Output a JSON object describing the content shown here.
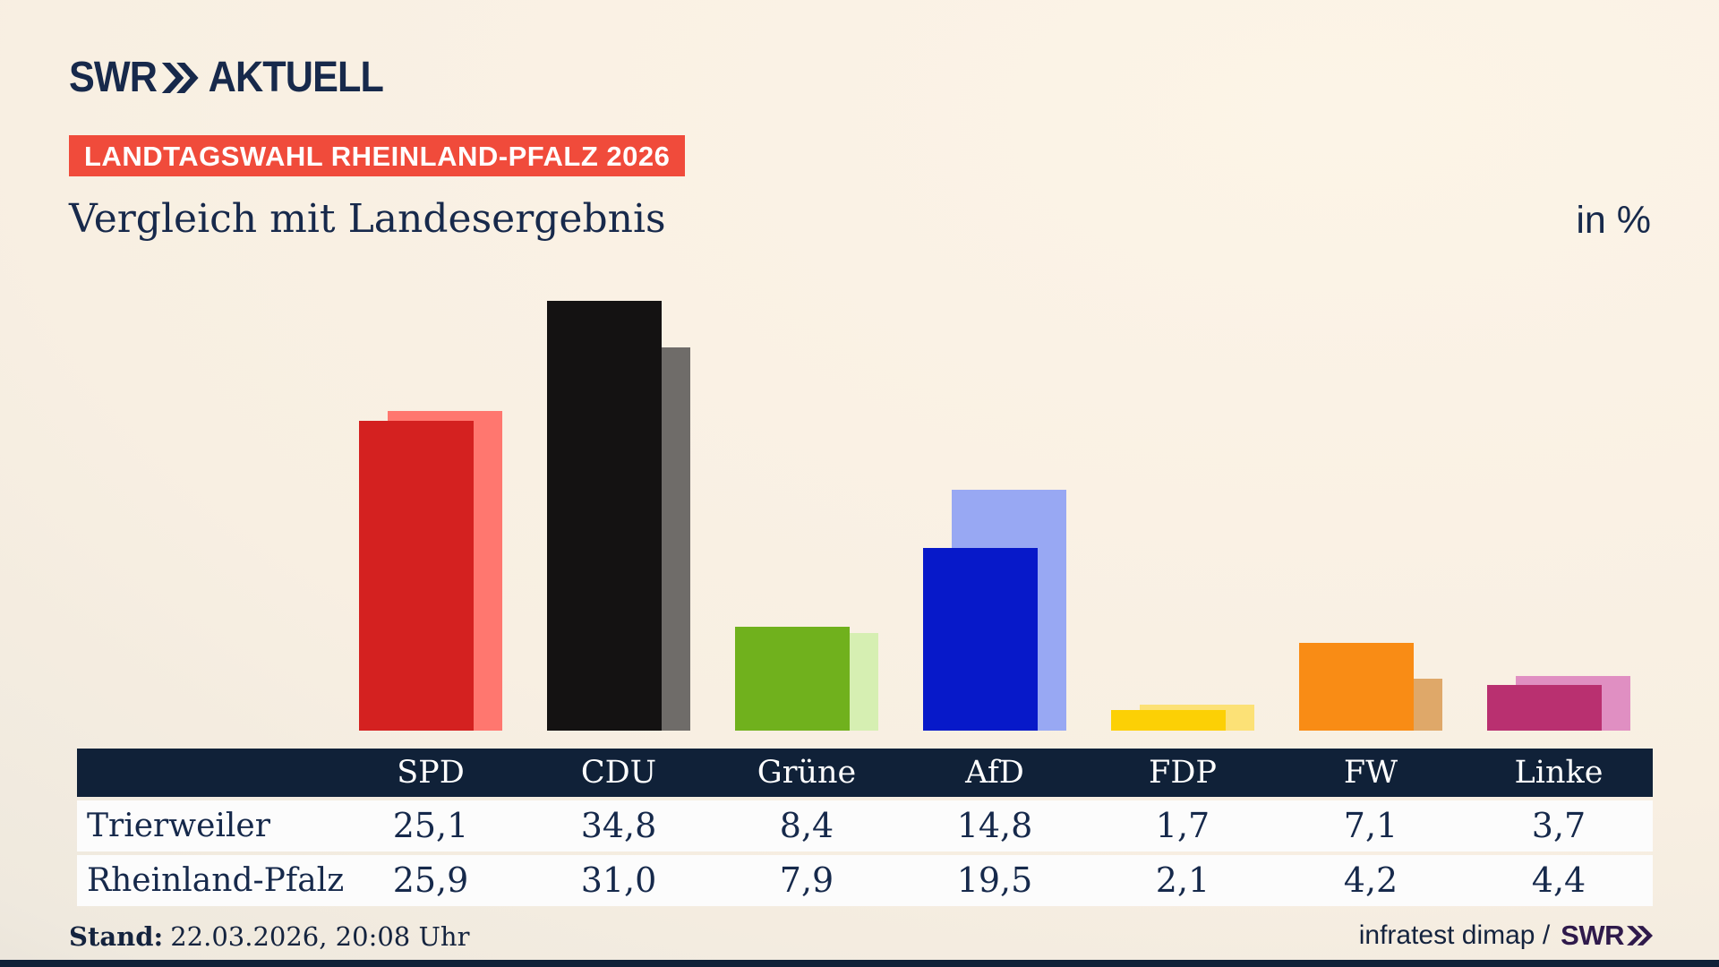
{
  "header": {
    "logo_brand": "SWR",
    "logo_name": "AKTUELL",
    "banner": "LANDTAGSWAHL RHEINLAND-PFALZ 2026",
    "title": "Vergleich mit Landesergebnis",
    "unit": "in %"
  },
  "chart_data": {
    "type": "bar",
    "categories": [
      "SPD",
      "CDU",
      "Grüne",
      "AfD",
      "FDP",
      "FW",
      "Linke"
    ],
    "series": [
      {
        "name": "Trierweiler",
        "values": [
          25.1,
          34.8,
          8.4,
          14.8,
          1.7,
          7.1,
          3.7
        ]
      },
      {
        "name": "Rheinland-Pfalz",
        "values": [
          25.9,
          31.0,
          7.9,
          19.5,
          2.1,
          4.2,
          4.4
        ]
      }
    ],
    "unit": "%",
    "value_format": "comma-decimal",
    "ylim": [
      0,
      36
    ],
    "grid": false,
    "legend_position": "table-row-labels",
    "bar_colors_trierweiler": [
      "#d42120",
      "#141212",
      "#70b11d",
      "#0719c9",
      "#fcd005",
      "#f98c15",
      "#b93070"
    ],
    "bar_colors_rheinland_pfalz": [
      "#ff776f",
      "#6f6c69",
      "#d6efb2",
      "#98a8f3",
      "#fce176",
      "#dfa869",
      "#e08fc2"
    ]
  },
  "footer": {
    "status_label": "Stand:",
    "status_value": "22.03.2026, 20:08 Uhr",
    "credit_text": "infratest dimap /",
    "credit_logo": "SWR"
  },
  "colors": {
    "navy_text": "#17294b",
    "table_band": "#102138",
    "banner_red": "#f04b3b",
    "row_bg": "#fcfcfc",
    "credit_purple": "#2f1a4b"
  }
}
